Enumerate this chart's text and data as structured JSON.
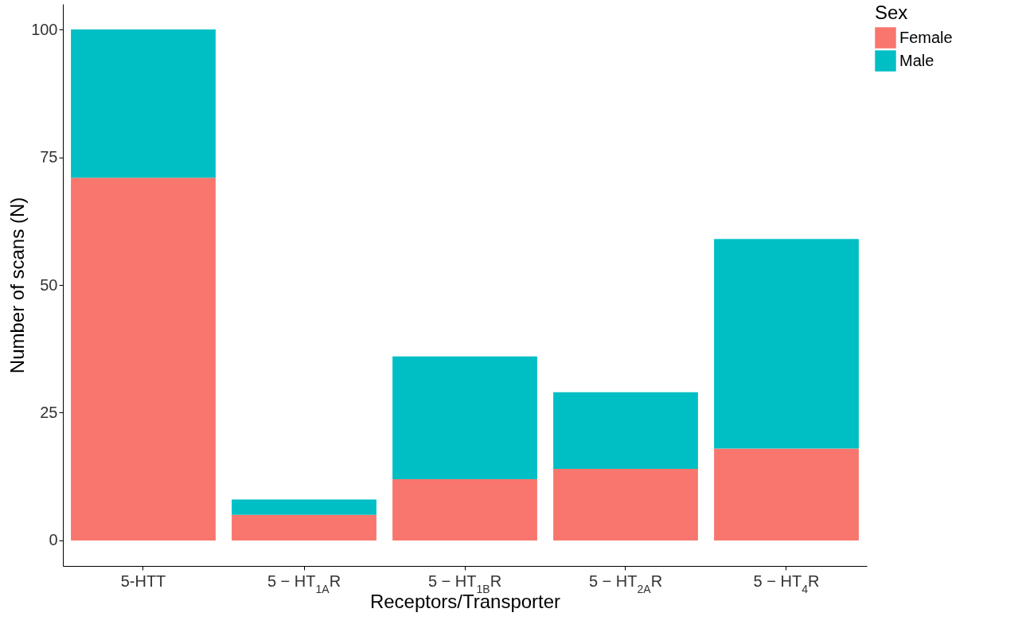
{
  "chart_data": {
    "type": "bar",
    "stacked": true,
    "xlabel": "Receptors/Transporter",
    "ylabel": "Number of scans (N)",
    "legend_title": "Sex",
    "legend": "right",
    "categories": [
      "5-HTT",
      "5 − HT$_{1A}$R",
      "5 − HT$_{1B}$R",
      "5 − HT$_{2A}$R",
      "5 − HT$_{4}$R"
    ],
    "series": [
      {
        "name": "Female",
        "color": "#f8766d",
        "values": [
          71,
          5,
          12,
          14,
          18
        ]
      },
      {
        "name": "Male",
        "color": "#00bfc4",
        "values": [
          29,
          3,
          24,
          15,
          41
        ]
      }
    ],
    "ylim": [
      -5,
      105
    ],
    "yticks": [
      0,
      25,
      50,
      75,
      100
    ],
    "grid": false
  }
}
